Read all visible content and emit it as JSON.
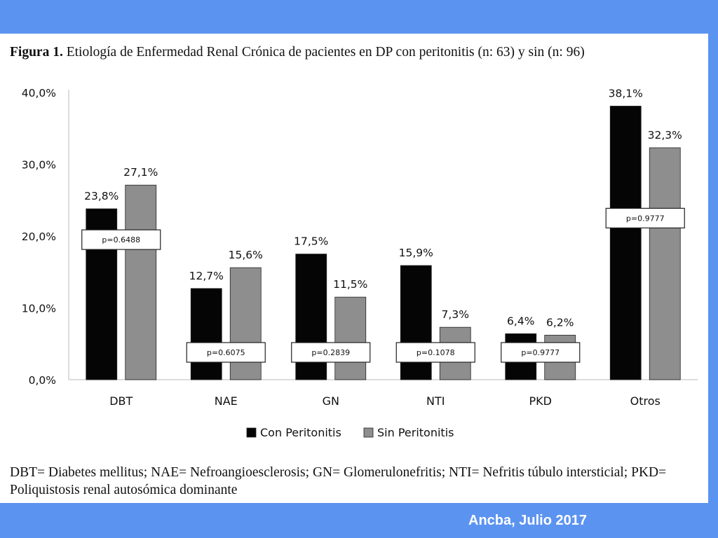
{
  "figure": {
    "title_prefix": "Figura 1.",
    "title_text": "Etiología de Enfermedad Renal Crónica de pacientes en DP con peritonitis (n: 63) y sin (n: 96)",
    "caption": "DBT= Diabetes mellitus; NAE= Nefroangioesclerosis; GN= Glomerulonefritis; NTI= Nefritis túbulo intersticial; PKD= Poliquistosis renal autosómica dominante"
  },
  "footer": {
    "text": "Ancba, Julio 2017"
  },
  "chart_data": {
    "type": "bar",
    "categories": [
      "DBT",
      "NAE",
      "GN",
      "NTI",
      "PKD",
      "Otros"
    ],
    "series": [
      {
        "name": "Con Peritonitis",
        "color": "#050505",
        "values": [
          23.8,
          12.7,
          17.5,
          15.9,
          6.4,
          38.1
        ],
        "labels": [
          "23,8%",
          "12,7%",
          "17,5%",
          "15,9%",
          "6,4%",
          "38,1%"
        ]
      },
      {
        "name": "Sin Peritonitis",
        "color": "#8e8e8e",
        "values": [
          27.1,
          15.6,
          11.5,
          7.3,
          6.2,
          32.3
        ],
        "labels": [
          "27,1%",
          "15,6%",
          "11,5%",
          "7,3%",
          "6,2%",
          "32,3%"
        ]
      }
    ],
    "ylim": [
      0,
      40
    ],
    "yticks": [
      0,
      10,
      20,
      30,
      40
    ],
    "ytick_labels": [
      "0,0%",
      "10,0%",
      "20,0%",
      "30,0%",
      "40,0%"
    ],
    "annotations": [
      {
        "category": "DBT",
        "text": "p=0.6488",
        "y": 19.5
      },
      {
        "category": "NAE",
        "text": "p=0.6075",
        "y": 3.8
      },
      {
        "category": "GN",
        "text": "p=0.2839",
        "y": 3.8
      },
      {
        "category": "NTI",
        "text": "p=0.1078",
        "y": 3.8
      },
      {
        "category": "PKD",
        "text": "p=0.9777",
        "y": 3.8
      },
      {
        "category": "Otros",
        "text": "p=0.9777",
        "y": 22.5
      }
    ],
    "grid": false,
    "legend": "bottom-center"
  }
}
